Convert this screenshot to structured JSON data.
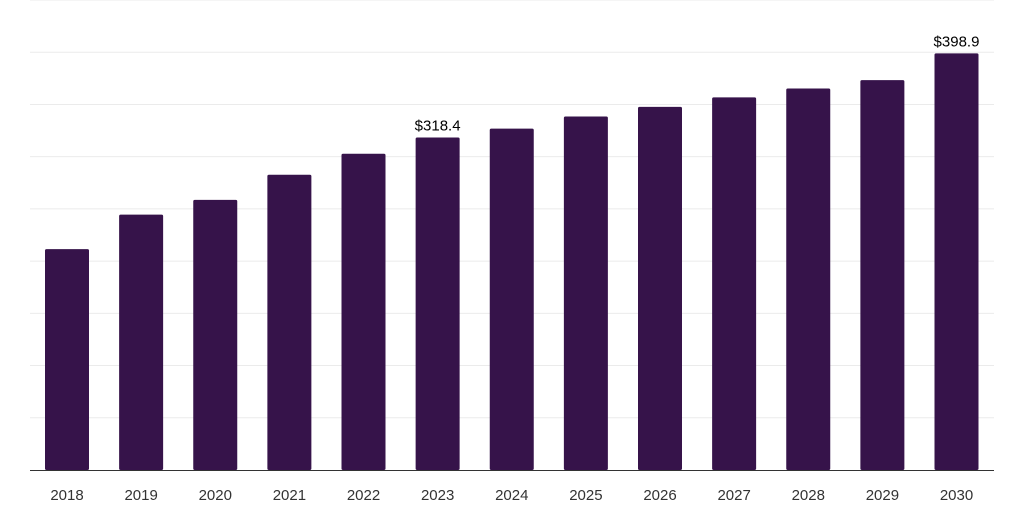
{
  "chart_data": {
    "type": "bar",
    "categories": [
      "2018",
      "2019",
      "2020",
      "2021",
      "2022",
      "2023",
      "2024",
      "2025",
      "2026",
      "2027",
      "2028",
      "2029",
      "2030"
    ],
    "values": [
      211.5,
      244.5,
      258.6,
      282.7,
      302.8,
      318.4,
      326.8,
      338.5,
      347.7,
      356.8,
      365.3,
      373.3,
      398.9
    ],
    "data_labels": [
      {
        "index": 5,
        "text": "$318.4"
      },
      {
        "index": 12,
        "text": "$398.9"
      }
    ],
    "title": "",
    "xlabel": "",
    "ylabel": "",
    "ylim": [
      0,
      450
    ],
    "grid": true,
    "legend": "none"
  },
  "colors": {
    "bar": "#36134a",
    "grid": "#ebebeb",
    "axis": "#333333"
  }
}
